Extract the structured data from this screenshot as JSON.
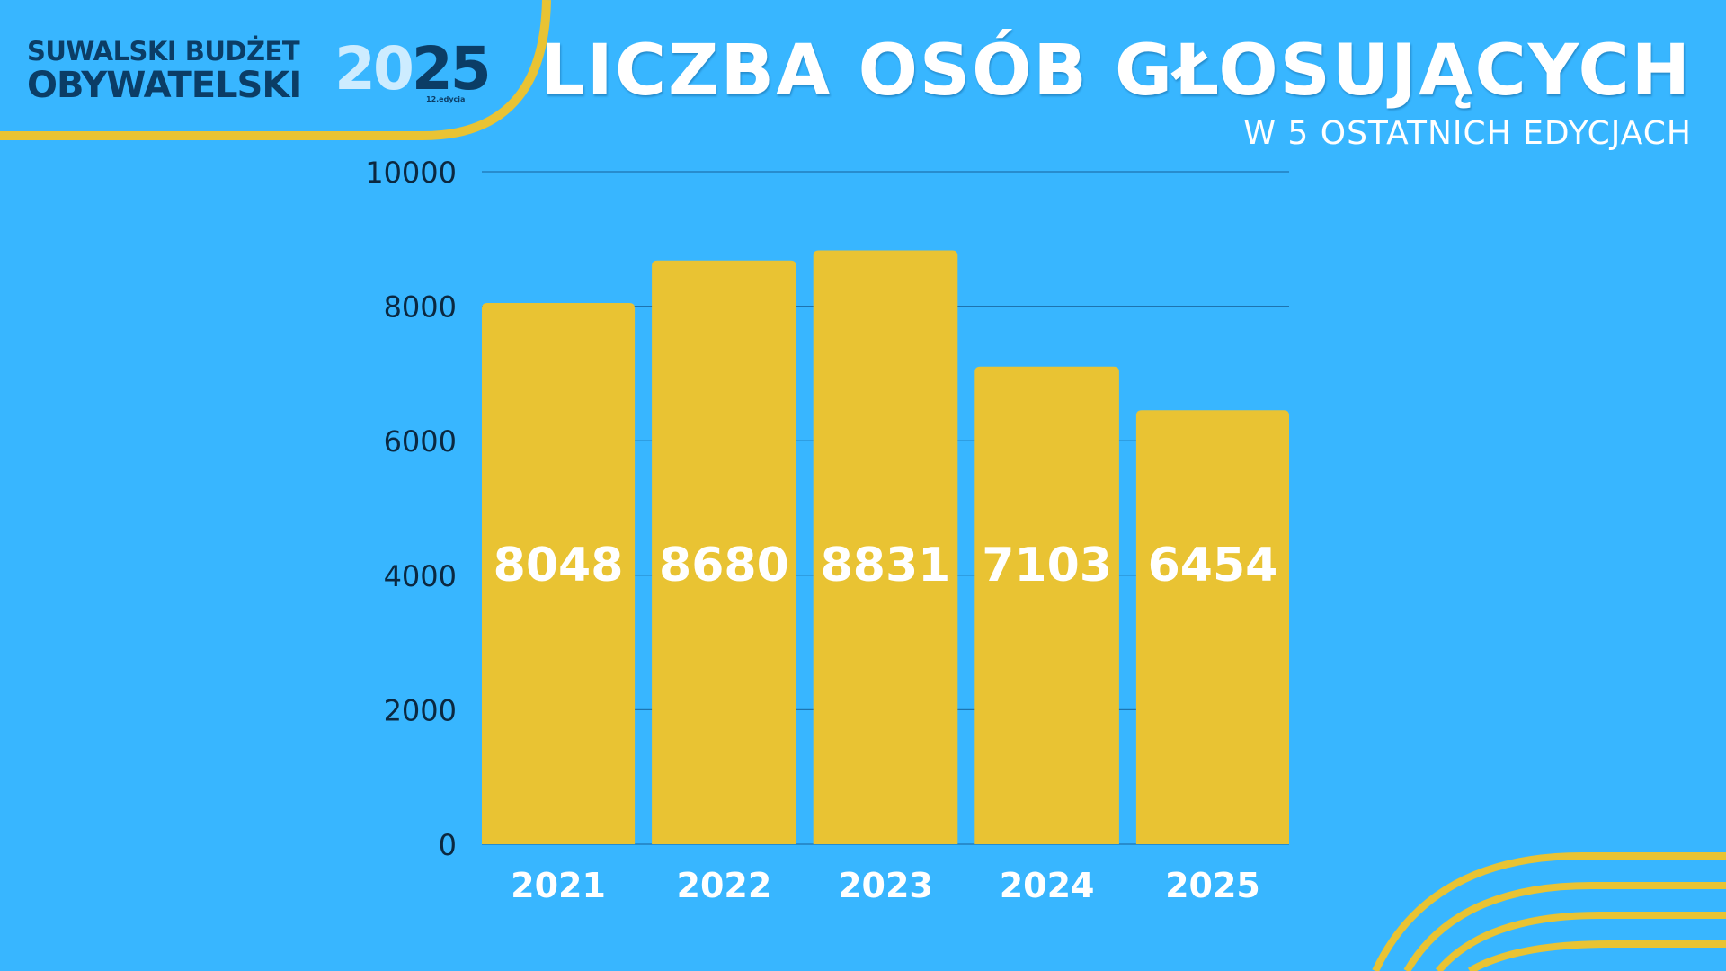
{
  "logo": {
    "line1": "SUWALSKI BUDŻET",
    "line2": "OBYWATELSKI",
    "year_digit1": "2",
    "year_digit2": "0",
    "year_rest": "25",
    "edition": "12.edycja"
  },
  "header": {
    "title": "LICZBA OSÓB GŁOSUJĄCYCH",
    "subtitle": "W 5 OSTATNICH EDYCJACH"
  },
  "colors": {
    "background": "#38b6ff",
    "bar": "#e9c333",
    "gridline": "#1d74b0",
    "accent_yellow": "#e9c333",
    "logo_blue": "#0b3d66"
  },
  "chart_data": {
    "type": "bar",
    "categories": [
      "2021",
      "2022",
      "2023",
      "2024",
      "2025"
    ],
    "values": [
      8048,
      8680,
      8831,
      7103,
      6454
    ],
    "data_labels": [
      "8048",
      "8680",
      "8831",
      "7103",
      "6454"
    ],
    "title": "LICZBA OSÓB GŁOSUJĄCYCH",
    "subtitle": "W 5 OSTATNICH EDYCJACH",
    "ylim": [
      0,
      10000
    ],
    "yticks": [
      0,
      2000,
      4000,
      6000,
      8000,
      10000
    ],
    "ytick_labels": [
      "0",
      "2000",
      "4000",
      "6000",
      "8000",
      "10000"
    ],
    "grid": true,
    "legend": "none"
  }
}
